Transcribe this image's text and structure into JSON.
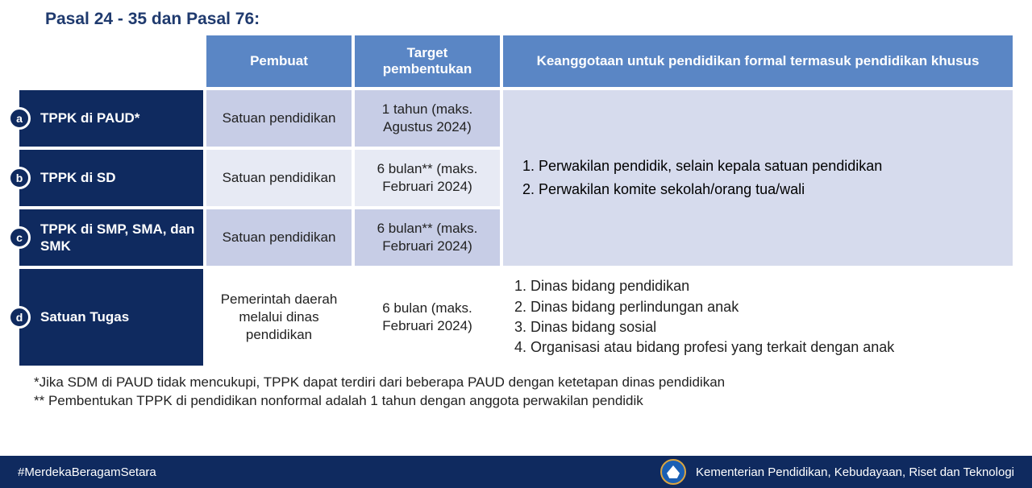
{
  "title": "Pasal 24 - 35 dan Pasal 76:",
  "headers": {
    "col1": "Pembuat",
    "col2": "Target pembentukan",
    "col3": "Keanggotaan untuk pendidikan formal termasuk pendidikan khusus"
  },
  "rows": [
    {
      "badge": "a",
      "label": "TPPK di PAUD*",
      "pembuat": "Satuan pendidikan",
      "target": "1 tahun (maks. Agustus 2024)",
      "bg_pembuat": "bg-a",
      "bg_target": "bg-a"
    },
    {
      "badge": "b",
      "label": "TPPK di SD",
      "pembuat": "Satuan pendidikan",
      "target": "6 bulan** (maks. Februari 2024)",
      "bg_pembuat": "bg-b",
      "bg_target": "bg-b"
    },
    {
      "badge": "c",
      "label": "TPPK di SMP, SMA, dan SMK",
      "pembuat": "Satuan pendidikan",
      "target": "6 bulan** (maks. Februari 2024)",
      "bg_pembuat": "bg-a",
      "bg_target": "bg-a"
    },
    {
      "badge": "d",
      "label": "Satuan Tugas",
      "pembuat": "Pemerintah daerah melalui dinas pendidikan",
      "target": "6 bulan (maks. Februari 2024)",
      "bg_pembuat": "bg-c",
      "bg_target": "bg-c"
    }
  ],
  "membership_group": [
    "Perwakilan pendidik, selain kepala satuan pendidikan",
    "Perwakilan komite sekolah/orang tua/wali"
  ],
  "membership_d": [
    "Dinas bidang pendidikan",
    "Dinas bidang perlindungan anak",
    "Dinas bidang sosial",
    "Organisasi atau bidang profesi yang terkait dengan anak"
  ],
  "footnotes": {
    "line1": "*Jika SDM di PAUD tidak mencukupi, TPPK dapat terdiri dari beberapa PAUD dengan ketetapan dinas pendidikan",
    "line2": "** Pembentukan TPPK di pendidikan nonformal adalah 1 tahun dengan anggota perwakilan pendidik"
  },
  "footer": {
    "hashtag": "#MerdekaBeragamSetara",
    "ministry": "Kementerian Pendidikan, Kebudayaan, Riset dan Teknologi"
  },
  "colors": {
    "header_bg": "#5a86c5",
    "rowlabel_bg": "#0f2a5f",
    "alt_a": "#c7cde6",
    "alt_b": "#e7eaf4",
    "merged_bg": "#d6dbed",
    "footer_bg": "#0f2a5f",
    "title_color": "#1f3a6e"
  }
}
